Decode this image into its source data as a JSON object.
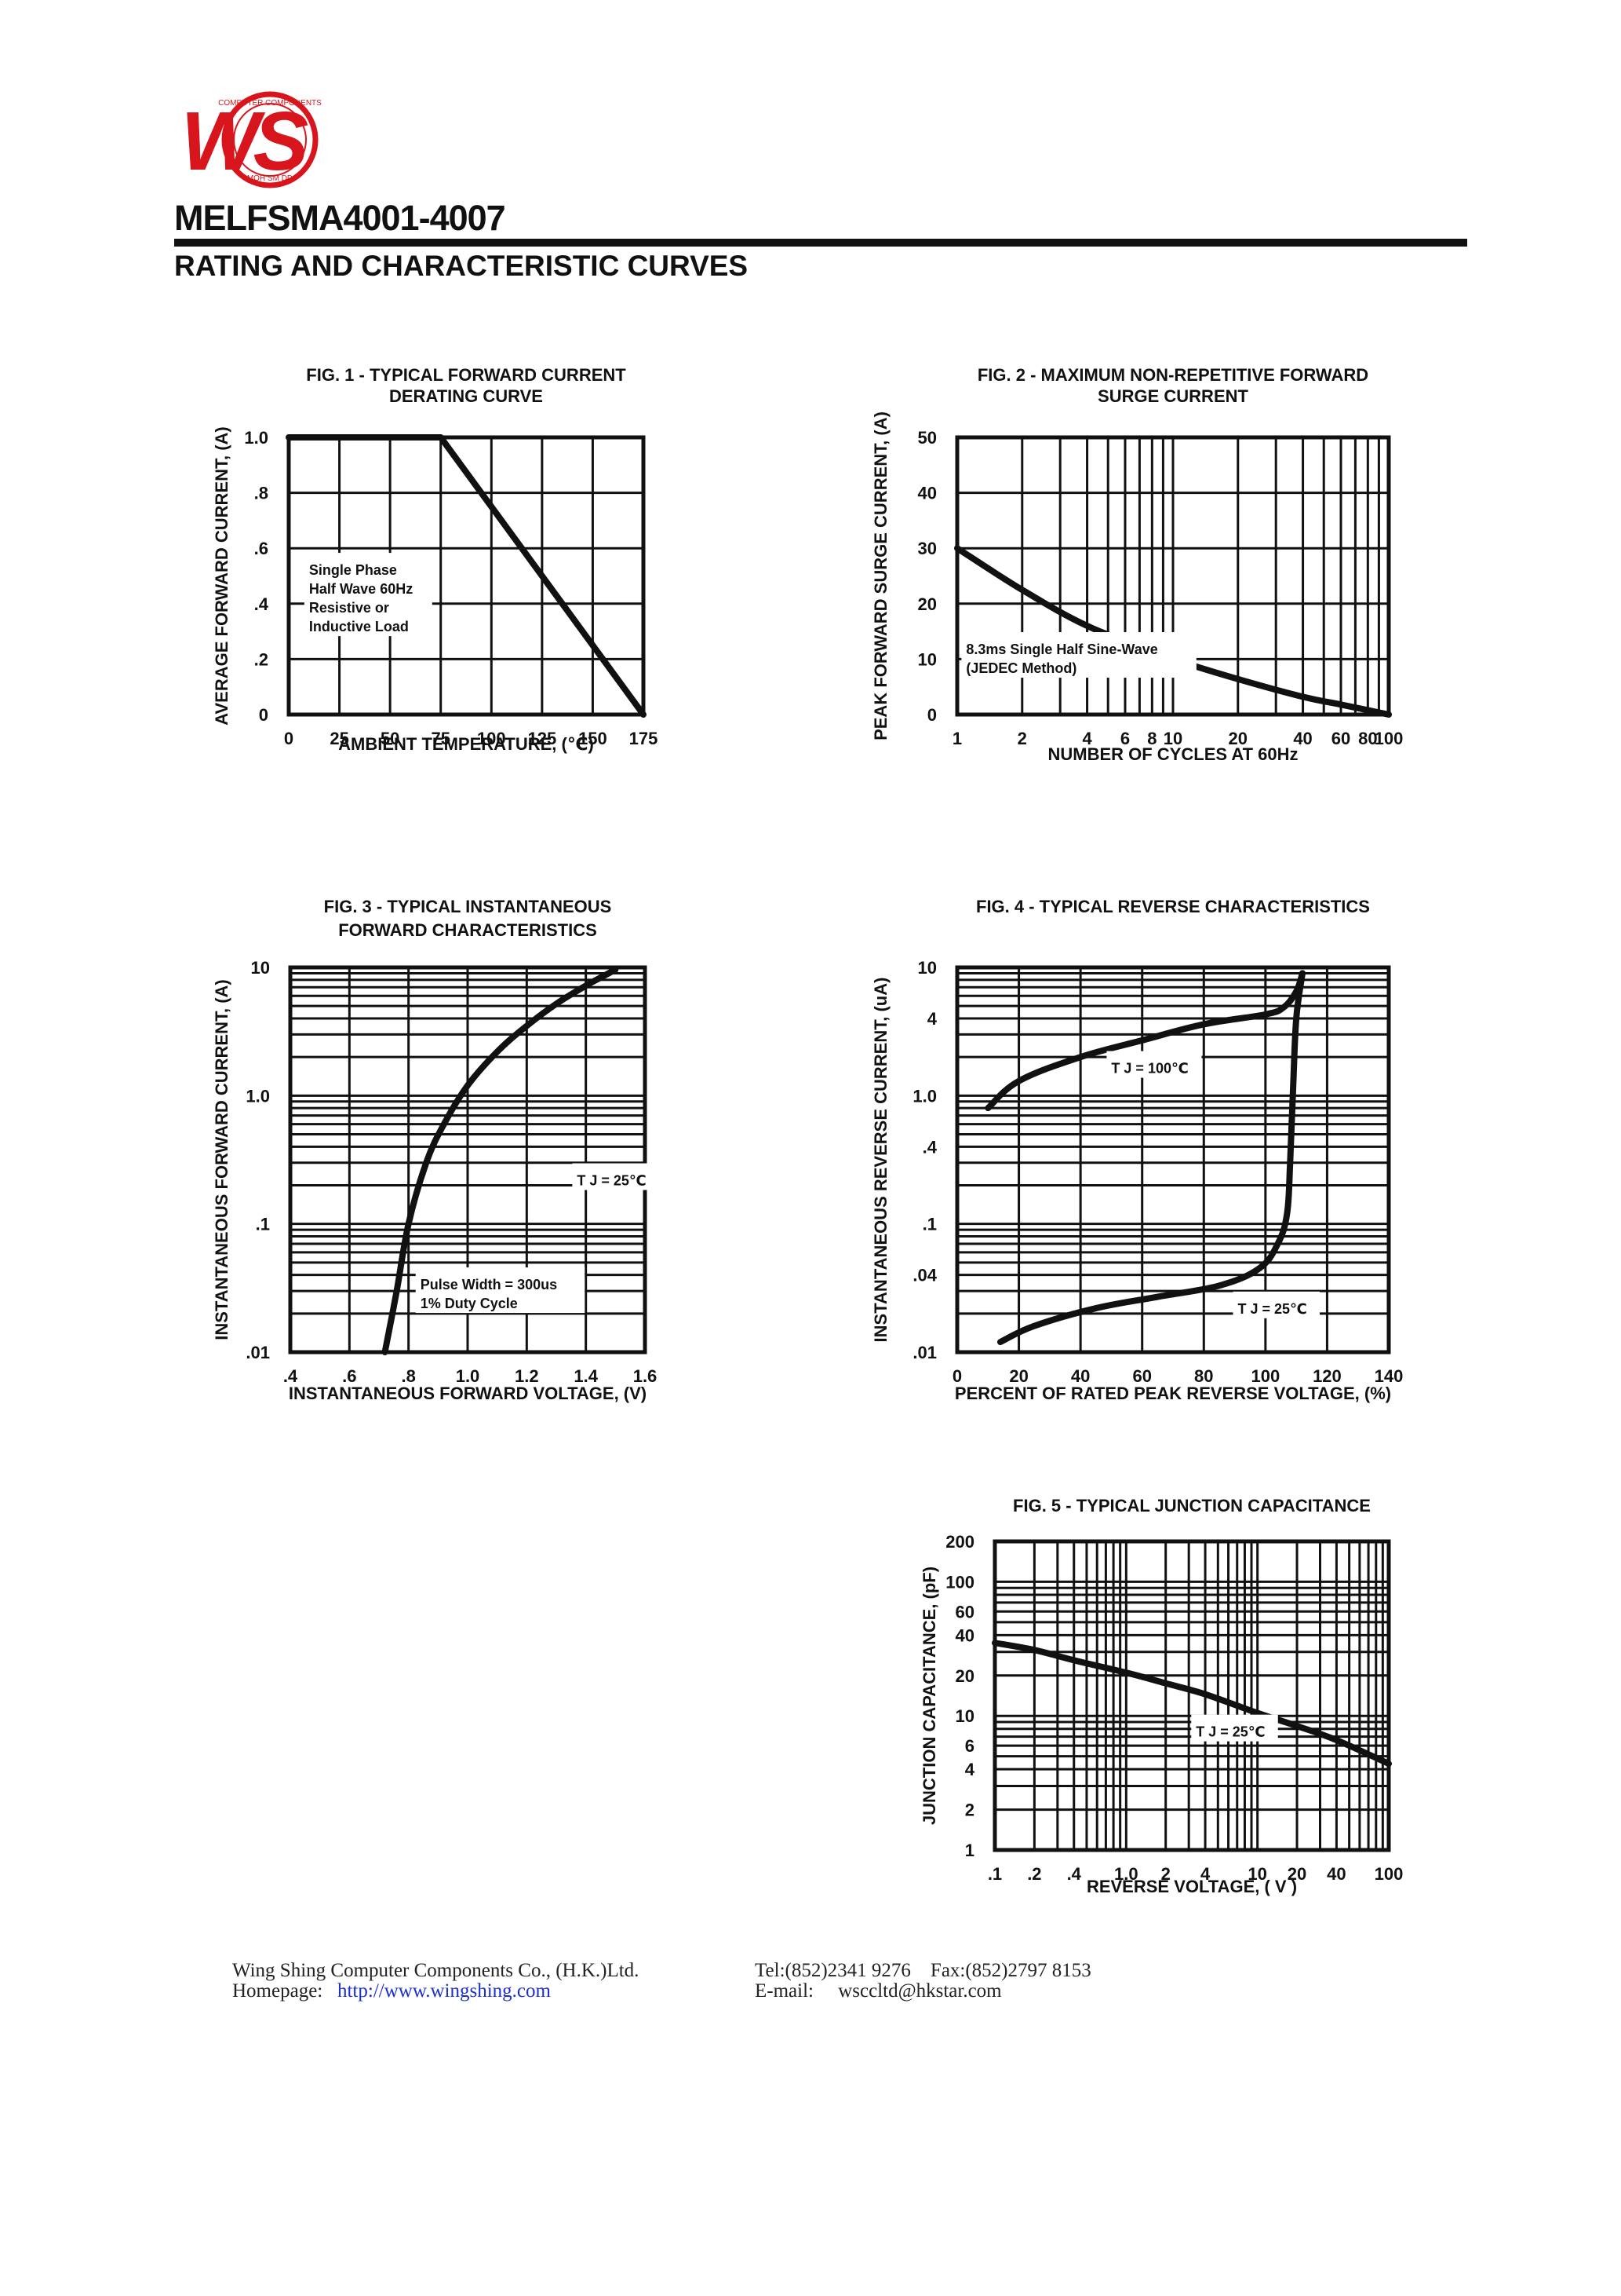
{
  "header": {
    "logo_text": "WS",
    "logo_ring_text": "COMPUTER COMPONENTS",
    "logo_bottom_text": "MOH SM DD",
    "title": "MELFSMA4001-4007",
    "subtitle": "RATING AND CHARACTERISTIC CURVES"
  },
  "colors": {
    "ink": "#111111",
    "logo_red": "#d8141c",
    "link_blue": "#1a2fd0"
  },
  "chart_data": [
    {
      "id": "fig1",
      "type": "line",
      "title_lines": [
        "FIG. 1 - TYPICAL FORWARD CURRENT",
        "DERATING CURVE"
      ],
      "xlabel": "AMBIENT TEMPERATURE, (℃)",
      "ylabel": "AVERAGE FORWARD CURRENT, (A)",
      "xscale": "linear",
      "yscale": "linear",
      "xlim": [
        0,
        175
      ],
      "ylim": [
        0,
        1.0
      ],
      "xticks": [
        {
          "v": 0,
          "t": "0"
        },
        {
          "v": 25,
          "t": "25"
        },
        {
          "v": 50,
          "t": "50"
        },
        {
          "v": 75,
          "t": "75"
        },
        {
          "v": 100,
          "t": "100"
        },
        {
          "v": 125,
          "t": "125"
        },
        {
          "v": 150,
          "t": "150"
        },
        {
          "v": 175,
          "t": "175"
        }
      ],
      "yticks": [
        {
          "v": 0,
          "t": "0"
        },
        {
          "v": 0.2,
          "t": ".2"
        },
        {
          "v": 0.4,
          "t": ".4"
        },
        {
          "v": 0.6,
          "t": ".6"
        },
        {
          "v": 0.8,
          "t": ".8"
        },
        {
          "v": 1.0,
          "t": "1.0"
        }
      ],
      "grid_x": [
        25,
        50,
        75,
        100,
        125,
        150
      ],
      "grid_y": [
        0.2,
        0.4,
        0.6,
        0.8
      ],
      "series": [
        {
          "x": [
            0,
            75,
            175
          ],
          "y": [
            1.0,
            1.0,
            0
          ]
        }
      ],
      "annotations": [
        {
          "lines": [
            "Single Phase",
            "Half Wave 60Hz",
            "Resistive or",
            "Inductive Load"
          ],
          "x": 10,
          "y": 0.3
        }
      ]
    },
    {
      "id": "fig2",
      "type": "line",
      "title_lines": [
        "FIG. 2 - MAXIMUM NON-REPETITIVE FORWARD",
        "SURGE CURRENT"
      ],
      "xlabel": "NUMBER OF CYCLES AT 60Hz",
      "ylabel": "PEAK FORWARD SURGE CURRENT, (A)",
      "xscale": "log",
      "yscale": "linear",
      "xlim": [
        1,
        100
      ],
      "ylim": [
        0,
        50
      ],
      "xticks": [
        {
          "v": 1,
          "t": "1"
        },
        {
          "v": 2,
          "t": "2"
        },
        {
          "v": 4,
          "t": "4"
        },
        {
          "v": 6,
          "t": "6"
        },
        {
          "v": 8,
          "t": "8"
        },
        {
          "v": 10,
          "t": "10"
        },
        {
          "v": 20,
          "t": "20"
        },
        {
          "v": 40,
          "t": "40"
        },
        {
          "v": 60,
          "t": "60"
        },
        {
          "v": 80,
          "t": "80"
        },
        {
          "v": 100,
          "t": "100"
        }
      ],
      "yticks": [
        {
          "v": 0,
          "t": "0"
        },
        {
          "v": 10,
          "t": "10"
        },
        {
          "v": 20,
          "t": "20"
        },
        {
          "v": 30,
          "t": "30"
        },
        {
          "v": 40,
          "t": "40"
        },
        {
          "v": 50,
          "t": "50"
        }
      ],
      "grid_x": [
        2,
        3,
        4,
        5,
        6,
        7,
        8,
        9,
        10,
        20,
        30,
        40,
        50,
        60,
        70,
        80,
        90
      ],
      "grid_y": [
        10,
        20,
        30,
        40
      ],
      "series": [
        {
          "x": [
            1,
            2,
            4,
            8,
            10,
            20,
            40,
            60,
            100
          ],
          "y": [
            30,
            22.5,
            16,
            11.5,
            10,
            6.4,
            3.2,
            1.8,
            0
          ]
        }
      ],
      "annotations": [
        {
          "lines": [
            "8.3ms Single Half Sine-Wave",
            "(JEDEC Method)"
          ],
          "x": 1.1,
          "y": 7.5
        }
      ]
    },
    {
      "id": "fig3",
      "type": "line",
      "title_lines": [
        "FIG. 3 - TYPICAL INSTANTANEOUS",
        "FORWARD CHARACTERISTICS"
      ],
      "xlabel": "INSTANTANEOUS FORWARD VOLTAGE, (V)",
      "ylabel": "INSTANTANEOUS FORWARD CURRENT, (A)",
      "xscale": "linear",
      "yscale": "log",
      "xlim": [
        0.4,
        1.6
      ],
      "ylim": [
        0.01,
        10
      ],
      "xticks": [
        {
          "v": 0.4,
          "t": ".4"
        },
        {
          "v": 0.6,
          "t": ".6"
        },
        {
          "v": 0.8,
          "t": ".8"
        },
        {
          "v": 1.0,
          "t": "1.0"
        },
        {
          "v": 1.2,
          "t": "1.2"
        },
        {
          "v": 1.4,
          "t": "1.4"
        },
        {
          "v": 1.6,
          "t": "1.6"
        }
      ],
      "yticks": [
        {
          "v": 0.01,
          "t": ".01"
        },
        {
          "v": 0.1,
          "t": ".1"
        },
        {
          "v": 1,
          "t": "1.0"
        },
        {
          "v": 10,
          "t": "10"
        }
      ],
      "grid_x": [
        0.6,
        0.8,
        1.0,
        1.2,
        1.4
      ],
      "grid_y": [
        0.02,
        0.03,
        0.04,
        0.05,
        0.06,
        0.07,
        0.08,
        0.09,
        0.1,
        0.2,
        0.3,
        0.4,
        0.5,
        0.6,
        0.7,
        0.8,
        0.9,
        1,
        2,
        3,
        4,
        5,
        6,
        7,
        8,
        9
      ],
      "series": [
        {
          "x": [
            0.72,
            0.76,
            0.8,
            0.86,
            0.92,
            1.0,
            1.1,
            1.2,
            1.3,
            1.4,
            1.5
          ],
          "y": [
            0.01,
            0.03,
            0.1,
            0.3,
            0.6,
            1.2,
            2.2,
            3.5,
            5.2,
            7.2,
            9.6
          ]
        }
      ],
      "annotations": [
        {
          "lines": [
            "T J = 25℃"
          ],
          "x": 1.37,
          "y": 0.2
        },
        {
          "lines": [
            "Pulse Width = 300us",
            "1% Duty Cycle"
          ],
          "x": 0.84,
          "y": 0.022
        }
      ]
    },
    {
      "id": "fig4",
      "type": "line",
      "title_lines": [
        "FIG. 4 - TYPICAL REVERSE CHARACTERISTICS"
      ],
      "xlabel": "PERCENT OF RATED PEAK REVERSE VOLTAGE, (%)",
      "ylabel": "INSTANTANEOUS REVERSE CURRENT, (uA)",
      "xscale": "linear",
      "yscale": "log",
      "xlim": [
        0,
        140
      ],
      "ylim": [
        0.01,
        10
      ],
      "xticks": [
        {
          "v": 0,
          "t": "0"
        },
        {
          "v": 20,
          "t": "20"
        },
        {
          "v": 40,
          "t": "40"
        },
        {
          "v": 60,
          "t": "60"
        },
        {
          "v": 80,
          "t": "80"
        },
        {
          "v": 100,
          "t": "100"
        },
        {
          "v": 120,
          "t": "120"
        },
        {
          "v": 140,
          "t": "140"
        }
      ],
      "yticks": [
        {
          "v": 0.01,
          "t": ".01"
        },
        {
          "v": 0.04,
          "t": ".04"
        },
        {
          "v": 0.1,
          "t": ".1"
        },
        {
          "v": 0.4,
          "t": ".4"
        },
        {
          "v": 1,
          "t": "1.0"
        },
        {
          "v": 4,
          "t": "4"
        },
        {
          "v": 10,
          "t": "10"
        }
      ],
      "grid_x": [
        20,
        40,
        60,
        80,
        100,
        120
      ],
      "grid_y": [
        0.02,
        0.03,
        0.04,
        0.05,
        0.06,
        0.07,
        0.08,
        0.09,
        0.1,
        0.2,
        0.3,
        0.4,
        0.5,
        0.6,
        0.7,
        0.8,
        0.9,
        1,
        2,
        3,
        4,
        5,
        6,
        7,
        8,
        9
      ],
      "series": [
        {
          "x": [
            10,
            20,
            40,
            60,
            80,
            100,
            106,
            110,
            112
          ],
          "y": [
            0.8,
            1.3,
            2.0,
            2.7,
            3.6,
            4.3,
            4.9,
            6.5,
            9.0
          ]
        },
        {
          "x": [
            14,
            25,
            45,
            65,
            85,
            98,
            104,
            107,
            108,
            109,
            110,
            112
          ],
          "y": [
            0.012,
            0.016,
            0.022,
            0.027,
            0.033,
            0.045,
            0.07,
            0.12,
            0.3,
            1.2,
            4.0,
            9.0
          ]
        }
      ],
      "annotations": [
        {
          "lines": [
            "T J = 100℃"
          ],
          "x": 50,
          "y": 1.5
        },
        {
          "lines": [
            "T J = 25℃"
          ],
          "x": 91,
          "y": 0.02
        }
      ]
    },
    {
      "id": "fig5",
      "type": "line",
      "title_lines": [
        "FIG. 5 - TYPICAL JUNCTION CAPACITANCE"
      ],
      "xlabel": "REVERSE VOLTAGE, ( V )",
      "ylabel": "JUNCTION CAPACITANCE, (pF)",
      "xscale": "log",
      "yscale": "log",
      "xlim": [
        0.1,
        100
      ],
      "ylim": [
        1,
        200
      ],
      "xticks": [
        {
          "v": 0.1,
          "t": ".1"
        },
        {
          "v": 0.2,
          "t": ".2"
        },
        {
          "v": 0.4,
          "t": ".4"
        },
        {
          "v": 1,
          "t": "1.0"
        },
        {
          "v": 2,
          "t": "2"
        },
        {
          "v": 4,
          "t": "4"
        },
        {
          "v": 10,
          "t": "10"
        },
        {
          "v": 20,
          "t": "20"
        },
        {
          "v": 40,
          "t": "40"
        },
        {
          "v": 100,
          "t": "100"
        }
      ],
      "yticks": [
        {
          "v": 1,
          "t": "1"
        },
        {
          "v": 2,
          "t": "2"
        },
        {
          "v": 4,
          "t": "4"
        },
        {
          "v": 6,
          "t": "6"
        },
        {
          "v": 10,
          "t": "10"
        },
        {
          "v": 20,
          "t": "20"
        },
        {
          "v": 40,
          "t": "40"
        },
        {
          "v": 60,
          "t": "60"
        },
        {
          "v": 100,
          "t": "100"
        },
        {
          "v": 200,
          "t": "200"
        }
      ],
      "grid_x": [
        0.2,
        0.3,
        0.4,
        0.5,
        0.6,
        0.7,
        0.8,
        0.9,
        1,
        2,
        3,
        4,
        5,
        6,
        7,
        8,
        9,
        10,
        20,
        30,
        40,
        50,
        60,
        70,
        80,
        90
      ],
      "grid_y": [
        2,
        3,
        4,
        5,
        6,
        7,
        8,
        9,
        10,
        20,
        30,
        40,
        50,
        60,
        70,
        80,
        90,
        100
      ],
      "series": [
        {
          "x": [
            0.1,
            0.2,
            0.4,
            1,
            2,
            4,
            10,
            20,
            40,
            100
          ],
          "y": [
            35,
            31,
            26,
            21,
            17.5,
            14.5,
            10.5,
            8.4,
            6.6,
            4.4
          ]
        }
      ],
      "annotations": [
        {
          "lines": [
            "T J = 25℃"
          ],
          "x": 3.4,
          "y": 7.0
        }
      ]
    }
  ],
  "footer": {
    "company": "Wing Shing Computer Components Co., (H.K.)Ltd.",
    "homepage_label": "Homepage:",
    "homepage_url": "http://www.wingshing.com",
    "tel_fax": "Tel:(852)2341 9276    Fax:(852)2797 8153",
    "email_label": "E-mail:",
    "email": "wsccltd@hkstar.com"
  }
}
